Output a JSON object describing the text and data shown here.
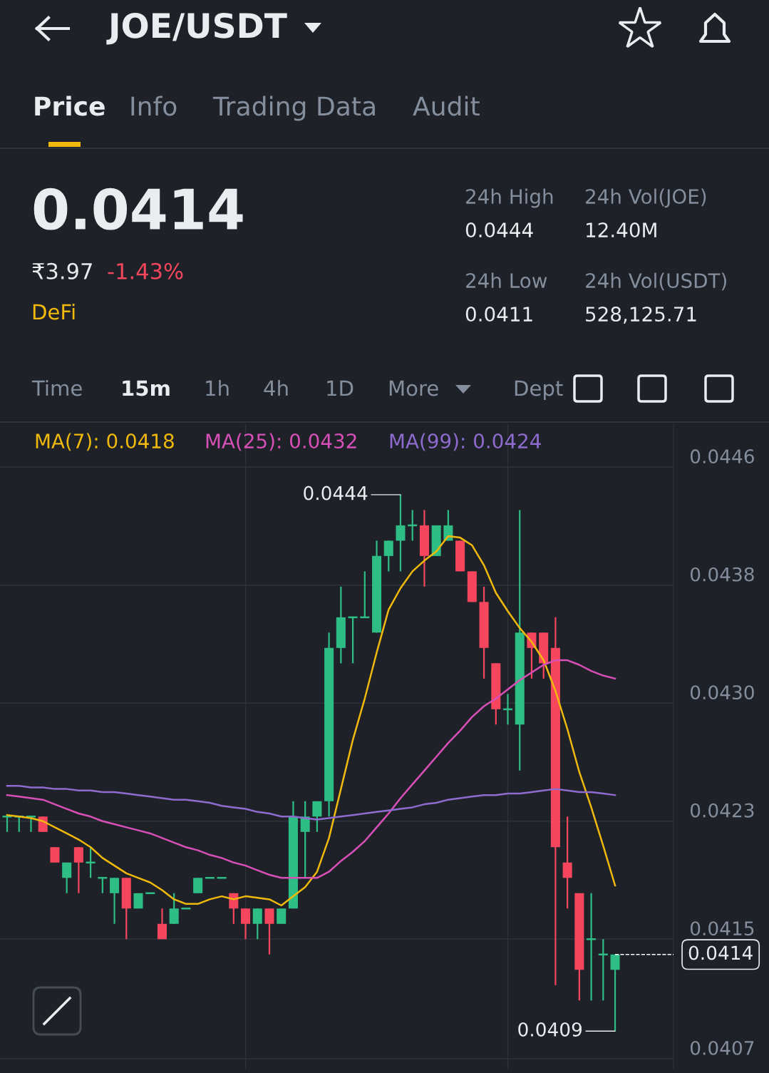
{
  "chart_data": {
    "type": "candlestick",
    "title": "JOE/USDT",
    "categories": [
      null,
      null,
      null,
      null,
      null,
      null,
      null,
      null,
      null,
      null,
      null,
      null,
      null,
      null,
      null,
      null,
      null,
      null,
      null,
      null,
      null,
      null,
      null,
      null,
      null,
      null,
      null,
      null,
      null,
      null,
      null,
      null,
      null,
      null,
      null,
      null,
      null,
      null,
      null,
      null,
      null,
      null,
      null,
      null,
      null,
      null,
      null,
      null,
      null,
      null,
      null,
      null
    ],
    "ohlc": [
      [
        0.0423,
        0.0423,
        0.0422,
        0.0423
      ],
      [
        0.0423,
        0.0423,
        0.0422,
        0.0423
      ],
      [
        0.0423,
        0.0423,
        0.0422,
        0.0423
      ],
      [
        0.0423,
        0.0423,
        0.0422,
        0.0422
      ],
      [
        0.0421,
        0.0421,
        0.042,
        0.042
      ],
      [
        0.0419,
        0.042,
        0.0418,
        0.042
      ],
      [
        0.0421,
        0.0421,
        0.0418,
        0.042
      ],
      [
        0.042,
        0.0421,
        0.0419,
        0.042
      ],
      [
        0.0419,
        0.0419,
        0.0418,
        0.0419
      ],
      [
        0.0418,
        0.0419,
        0.0416,
        0.0419
      ],
      [
        0.0419,
        0.0419,
        0.0415,
        0.0417
      ],
      [
        0.0417,
        0.0418,
        0.0417,
        0.0418
      ],
      [
        0.0418,
        0.0418,
        0.0418,
        0.0418
      ],
      [
        0.0416,
        0.0417,
        0.0415,
        0.0415
      ],
      [
        0.0416,
        0.0418,
        0.0416,
        0.0417
      ],
      [
        0.0417,
        0.0417,
        0.0417,
        0.0417
      ],
      [
        0.0418,
        0.0419,
        0.0418,
        0.0419
      ],
      [
        0.0419,
        0.0419,
        0.0419,
        0.0419
      ],
      [
        0.0419,
        0.0419,
        0.0419,
        0.0419
      ],
      [
        0.0418,
        0.0418,
        0.0416,
        0.0417
      ],
      [
        0.0417,
        0.0417,
        0.0415,
        0.0416
      ],
      [
        0.0416,
        0.0417,
        0.0415,
        0.0417
      ],
      [
        0.0417,
        0.0417,
        0.0414,
        0.0416
      ],
      [
        0.0416,
        0.0417,
        0.0416,
        0.0417
      ],
      [
        0.0417,
        0.0424,
        0.0417,
        0.0423
      ],
      [
        0.0422,
        0.0424,
        0.0419,
        0.0423
      ],
      [
        0.0423,
        0.0424,
        0.0422,
        0.0424
      ],
      [
        0.0424,
        0.0435,
        0.0423,
        0.0434
      ],
      [
        0.0434,
        0.0438,
        0.0433,
        0.0436
      ],
      [
        0.0436,
        0.0436,
        0.0433,
        0.0436
      ],
      [
        0.0436,
        0.0439,
        0.0436,
        0.0436
      ],
      [
        0.0435,
        0.0441,
        0.0435,
        0.044
      ],
      [
        0.044,
        0.0441,
        0.0439,
        0.0441
      ],
      [
        0.0441,
        0.0444,
        0.0439,
        0.0442
      ],
      [
        0.0442,
        0.0443,
        0.0441,
        0.0442
      ],
      [
        0.0442,
        0.0443,
        0.0438,
        0.044
      ],
      [
        0.044,
        0.0442,
        0.044,
        0.0442
      ],
      [
        0.0441,
        0.0443,
        0.0441,
        0.0442
      ],
      [
        0.0441,
        0.0441,
        0.0439,
        0.0439
      ],
      [
        0.0439,
        0.0439,
        0.0437,
        0.0437
      ],
      [
        0.0437,
        0.0438,
        0.0432,
        0.0434
      ],
      [
        0.0433,
        0.0433,
        0.0429,
        0.043
      ],
      [
        0.043,
        0.0431,
        0.0429,
        0.043
      ],
      [
        0.0429,
        0.0443,
        0.0426,
        0.0435
      ],
      [
        0.0435,
        0.0435,
        0.0432,
        0.0434
      ],
      [
        0.0435,
        0.0435,
        0.0432,
        0.0433
      ],
      [
        0.0434,
        0.0436,
        0.0412,
        0.0421
      ],
      [
        0.042,
        0.0423,
        0.0417,
        0.0419
      ],
      [
        0.0418,
        0.0418,
        0.0411,
        0.0413
      ],
      [
        0.0415,
        0.0418,
        0.0411,
        0.0415
      ],
      [
        0.0414,
        0.0415,
        0.0411,
        0.0414
      ],
      [
        0.0413,
        0.0414,
        0.0409,
        0.0414
      ]
    ],
    "series": [
      {
        "name": "MA(7): 0.0418",
        "type": "line",
        "color": "#f0b90b",
        "values": [
          0.04231,
          0.0423,
          0.04229,
          0.04227,
          0.04223,
          0.04219,
          0.04215,
          0.0421,
          0.04203,
          0.04198,
          0.04193,
          0.0419,
          0.04187,
          0.04182,
          0.04176,
          0.04173,
          0.04173,
          0.04176,
          0.04178,
          0.04176,
          0.04178,
          0.04177,
          0.04176,
          0.04172,
          0.04178,
          0.04184,
          0.04194,
          0.04216,
          0.04248,
          0.0428,
          0.04307,
          0.04337,
          0.04365,
          0.04379,
          0.0439,
          0.04397,
          0.04403,
          0.04413,
          0.04412,
          0.04407,
          0.04394,
          0.04376,
          0.04364,
          0.04353,
          0.04344,
          0.04332,
          0.04312,
          0.04287,
          0.04259,
          0.04236,
          0.04211,
          0.04185
        ]
      },
      {
        "name": "MA(25): 0.0432",
        "type": "line",
        "color": "#d94fb8",
        "values": [
          0.04244,
          0.04243,
          0.04242,
          0.04241,
          0.04238,
          0.04235,
          0.04232,
          0.0423,
          0.04227,
          0.04225,
          0.04223,
          0.04221,
          0.04219,
          0.04216,
          0.04213,
          0.0421,
          0.04208,
          0.04205,
          0.04203,
          0.042,
          0.04198,
          0.04195,
          0.04192,
          0.0419,
          0.0419,
          0.0419,
          0.0419,
          0.04194,
          0.04201,
          0.04207,
          0.04214,
          0.04223,
          0.04232,
          0.04242,
          0.04251,
          0.0426,
          0.04269,
          0.04278,
          0.04286,
          0.04295,
          0.04302,
          0.04307,
          0.04313,
          0.04319,
          0.04324,
          0.04329,
          0.04332,
          0.04332,
          0.04329,
          0.04325,
          0.04322,
          0.0432
        ]
      },
      {
        "name": "MA(99): 0.0424",
        "type": "line",
        "color": "#8e6ccf",
        "values": [
          0.0425,
          0.0425,
          0.04249,
          0.04249,
          0.04248,
          0.04248,
          0.04247,
          0.04247,
          0.04246,
          0.04246,
          0.04245,
          0.04244,
          0.04243,
          0.04242,
          0.04241,
          0.04241,
          0.0424,
          0.04239,
          0.04237,
          0.04236,
          0.04235,
          0.04233,
          0.04232,
          0.0423,
          0.0423,
          0.04229,
          0.04228,
          0.04229,
          0.0423,
          0.04231,
          0.04232,
          0.04233,
          0.04234,
          0.04235,
          0.04236,
          0.04238,
          0.04239,
          0.04241,
          0.04242,
          0.04243,
          0.04244,
          0.04244,
          0.04245,
          0.04245,
          0.04246,
          0.04247,
          0.04248,
          0.04247,
          0.04246,
          0.04246,
          0.04245,
          0.04244
        ]
      }
    ],
    "ylim": [
      0.04065,
      0.04486
    ],
    "yticks": [
      {
        "value": 0.04458,
        "label": "0.0446"
      },
      {
        "value": 0.04381,
        "label": "0.0438"
      },
      {
        "value": 0.04304,
        "label": "0.0430"
      },
      {
        "value": 0.04227,
        "label": "0.0423"
      },
      {
        "value": 0.0415,
        "label": "0.0415"
      },
      {
        "value": 0.04072,
        "label": "0.0407"
      }
    ],
    "tick_labels": "y",
    "grid": "y",
    "legend": "top",
    "ref_lines": [
      {
        "axis": "y",
        "value": 0.0414,
        "label": "0.0414",
        "line_style": "dashed",
        "color": "#ffffff"
      }
    ],
    "annotations": [
      "Price",
      "Info",
      "Trading Data",
      "Audit",
      "0.0414",
      "₹3.97",
      "-1.43%",
      "DeFi",
      "24h High",
      "0.0444",
      "24h Vol(JOE)",
      "12.40M",
      "24h Low",
      "0.0411",
      "24h Vol(USDT)",
      "528,125.71",
      "Time",
      "15m",
      "1h",
      "4h",
      "1D",
      "More",
      "Dept",
      "0.0444",
      "0.0409"
    ]
  }
}
